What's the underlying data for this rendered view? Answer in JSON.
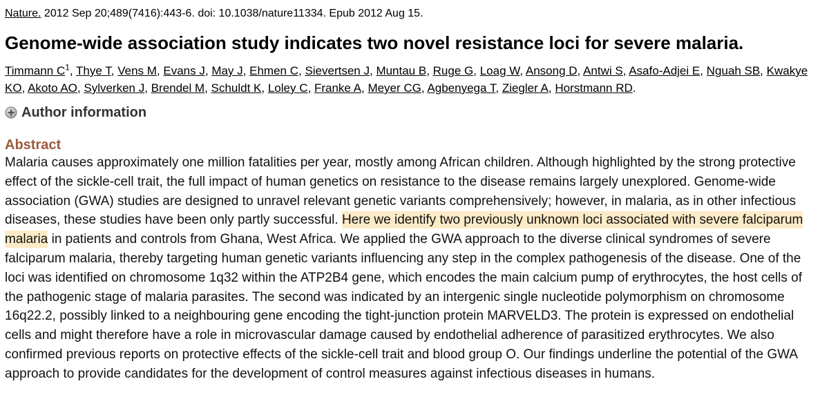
{
  "citation": {
    "journal": "Nature.",
    "details": " 2012 Sep 20;489(7416):443-6. doi: 10.1038/nature11334. Epub 2012 Aug 15."
  },
  "title": "Genome-wide association study indicates two novel resistance loci for severe malaria.",
  "authors": [
    {
      "name": "Timmann C",
      "sup": "1"
    },
    {
      "name": "Thye T"
    },
    {
      "name": "Vens M"
    },
    {
      "name": "Evans J"
    },
    {
      "name": "May J"
    },
    {
      "name": "Ehmen C"
    },
    {
      "name": "Sievertsen J"
    },
    {
      "name": "Muntau B"
    },
    {
      "name": "Ruge G"
    },
    {
      "name": "Loag W"
    },
    {
      "name": "Ansong D"
    },
    {
      "name": "Antwi S"
    },
    {
      "name": "Asafo-Adjei E"
    },
    {
      "name": "Nguah SB"
    },
    {
      "name": "Kwakye KO"
    },
    {
      "name": "Akoto AO"
    },
    {
      "name": "Sylverken J"
    },
    {
      "name": "Brendel M"
    },
    {
      "name": "Schuldt K"
    },
    {
      "name": "Loley C"
    },
    {
      "name": "Franke A"
    },
    {
      "name": "Meyer CG"
    },
    {
      "name": "Agbenyega T"
    },
    {
      "name": "Ziegler A"
    },
    {
      "name": "Horstmann RD"
    }
  ],
  "author_info_label": "Author information",
  "abstract": {
    "heading": "Abstract",
    "heading_color": "#9c5a3c",
    "highlight_color": "#fdebc8",
    "pre": "Malaria causes approximately one million fatalities per year, mostly among African children. Although highlighted by the strong protective effect of the sickle-cell trait, the full impact of human genetics on resistance to the disease remains largely unexplored. Genome-wide association (GWA) studies are designed to unravel relevant genetic variants comprehensively; however, in malaria, as in other infectious diseases, these studies have been only partly successful. ",
    "highlight": "Here we identify two previously unknown loci associated with severe falciparum malaria",
    "post": " in patients and controls from Ghana, West Africa. We applied the GWA approach to the diverse clinical syndromes of severe falciparum malaria, thereby targeting human genetic variants influencing any step in the complex pathogenesis of the disease. One of the loci was identified on chromosome 1q32 within the ATP2B4 gene, which encodes the main calcium pump of erythrocytes, the host cells of the pathogenic stage of malaria parasites. The second was indicated by an intergenic single nucleotide polymorphism on chromosome 16q22.2, possibly linked to a neighbouring gene encoding the tight-junction protein MARVELD3. The protein is expressed on endothelial cells and might therefore have a role in microvascular damage caused by endothelial adherence of parasitized erythrocytes. We also confirmed previous reports on protective effects of the sickle-cell trait and blood group O. Our findings underline the potential of the GWA approach to provide candidates for the development of control measures against infectious diseases in humans."
  }
}
